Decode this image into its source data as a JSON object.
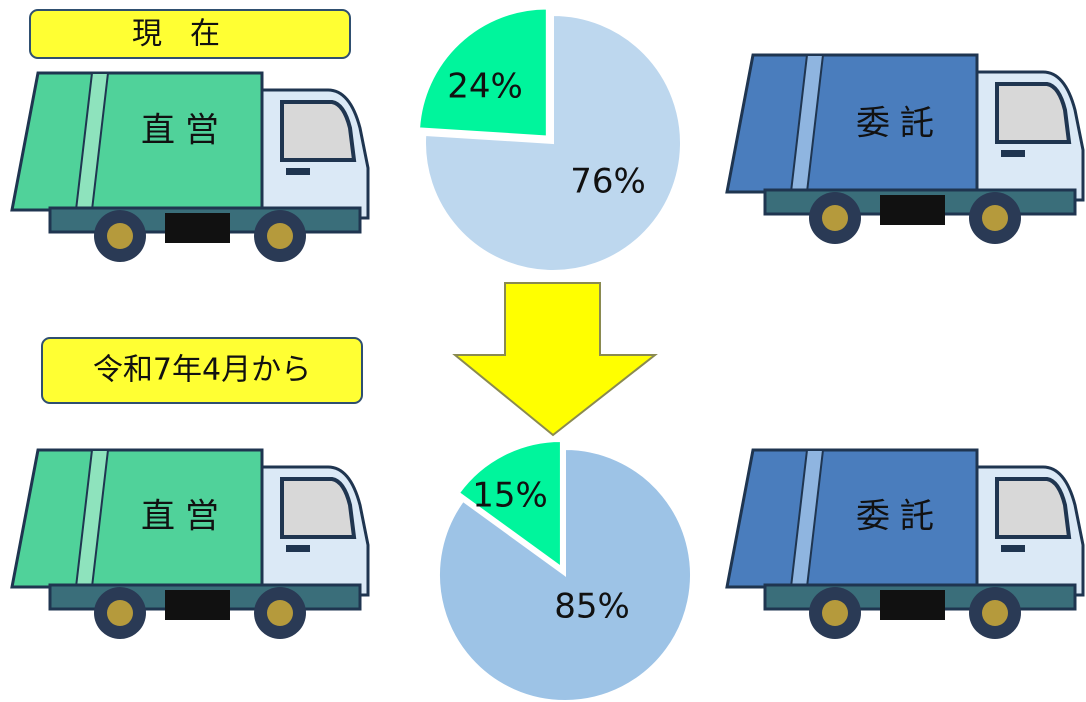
{
  "chart_data": [
    {
      "type": "pie",
      "title": "現在",
      "categories": [
        "直営",
        "委託"
      ],
      "values": [
        24,
        76
      ],
      "value_labels": [
        "24%",
        "76%"
      ],
      "colors": [
        "#00f59c",
        "#bdd7ee"
      ]
    },
    {
      "type": "pie",
      "title": "令和7年4月から",
      "categories": [
        "直営",
        "委託"
      ],
      "values": [
        15,
        85
      ],
      "value_labels": [
        "15%",
        "85%"
      ],
      "colors": [
        "#00f59c",
        "#9dc3e6"
      ]
    }
  ]
}
